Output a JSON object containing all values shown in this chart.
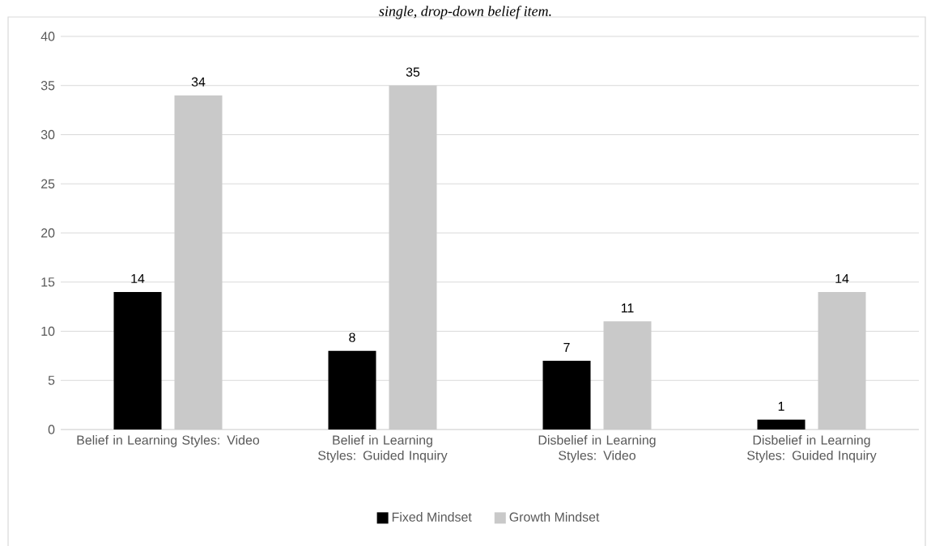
{
  "chart_data": {
    "type": "bar",
    "title": "single, drop-down belief item.",
    "categories": [
      "Belief in Learning Styles: Video",
      "Belief in Learning Styles: Guided Inquiry",
      "Disbelief in Learning Styles: Video",
      "Disbelief in Learning Styles: Guided Inquiry"
    ],
    "series": [
      {
        "name": "Fixed Mindset",
        "color": "#000000",
        "values": [
          14,
          8,
          7,
          1
        ]
      },
      {
        "name": "Growth Mindset",
        "color": "#c9c9c9",
        "values": [
          34,
          35,
          11,
          14
        ]
      }
    ],
    "ylim": [
      0,
      40
    ],
    "yticks": [
      0,
      5,
      10,
      15,
      20,
      25,
      30,
      35,
      40
    ],
    "grid": "y",
    "legend": "bottom",
    "data_labels": true
  }
}
